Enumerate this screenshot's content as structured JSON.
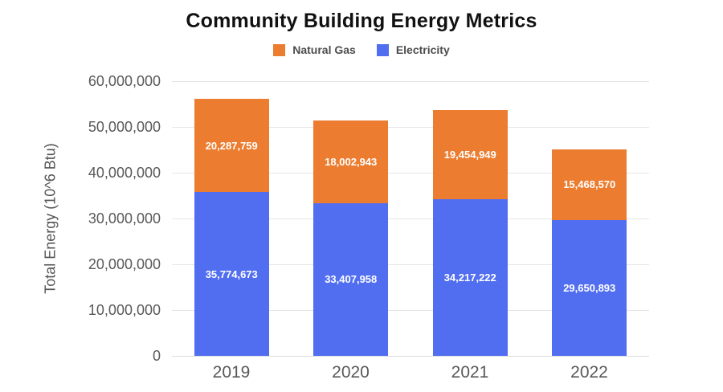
{
  "chart_data": {
    "type": "bar",
    "stacked": true,
    "title": "Community Building Energy Metrics",
    "xlabel": "",
    "ylabel": "Total Energy (10^6 Btu)",
    "categories": [
      "2019",
      "2020",
      "2021",
      "2022"
    ],
    "series": [
      {
        "name": "Natural Gas",
        "color": "#EC7D30",
        "values": [
          20287759,
          18002943,
          19454949,
          15468570
        ]
      },
      {
        "name": "Electricity",
        "color": "#526EF0",
        "values": [
          35774673,
          33407958,
          34217222,
          29650893
        ]
      }
    ],
    "stack_order_bottom_to_top": [
      "Electricity",
      "Natural Gas"
    ],
    "ylim": [
      0,
      60000000
    ],
    "ytick_values": [
      0,
      10000000,
      20000000,
      30000000,
      40000000,
      50000000,
      60000000
    ],
    "ytick_labels": [
      "0",
      "10,000,000",
      "20,000,000",
      "30,000,000",
      "40,000,000",
      "50,000,000",
      "60,000,000"
    ],
    "bar_value_labels": {
      "Natural Gas": [
        "20,287,759",
        "18,002,943",
        "19,454,949",
        "15,468,570"
      ],
      "Electricity": [
        "35,774,673",
        "33,407,958",
        "34,217,222",
        "29,650,893"
      ]
    },
    "grid": "horizontal",
    "legend_position": "top-center",
    "colors": {
      "gridline": "#E6E6E6",
      "axis_baseline": "#DCDCDC",
      "tick_text": "#595959",
      "axis_title_text": "#555555",
      "title_text": "#111111",
      "legend_text": "#4D4D4D",
      "bar_label_text": "#FFFFFF",
      "background": "#FFFFFF"
    }
  }
}
